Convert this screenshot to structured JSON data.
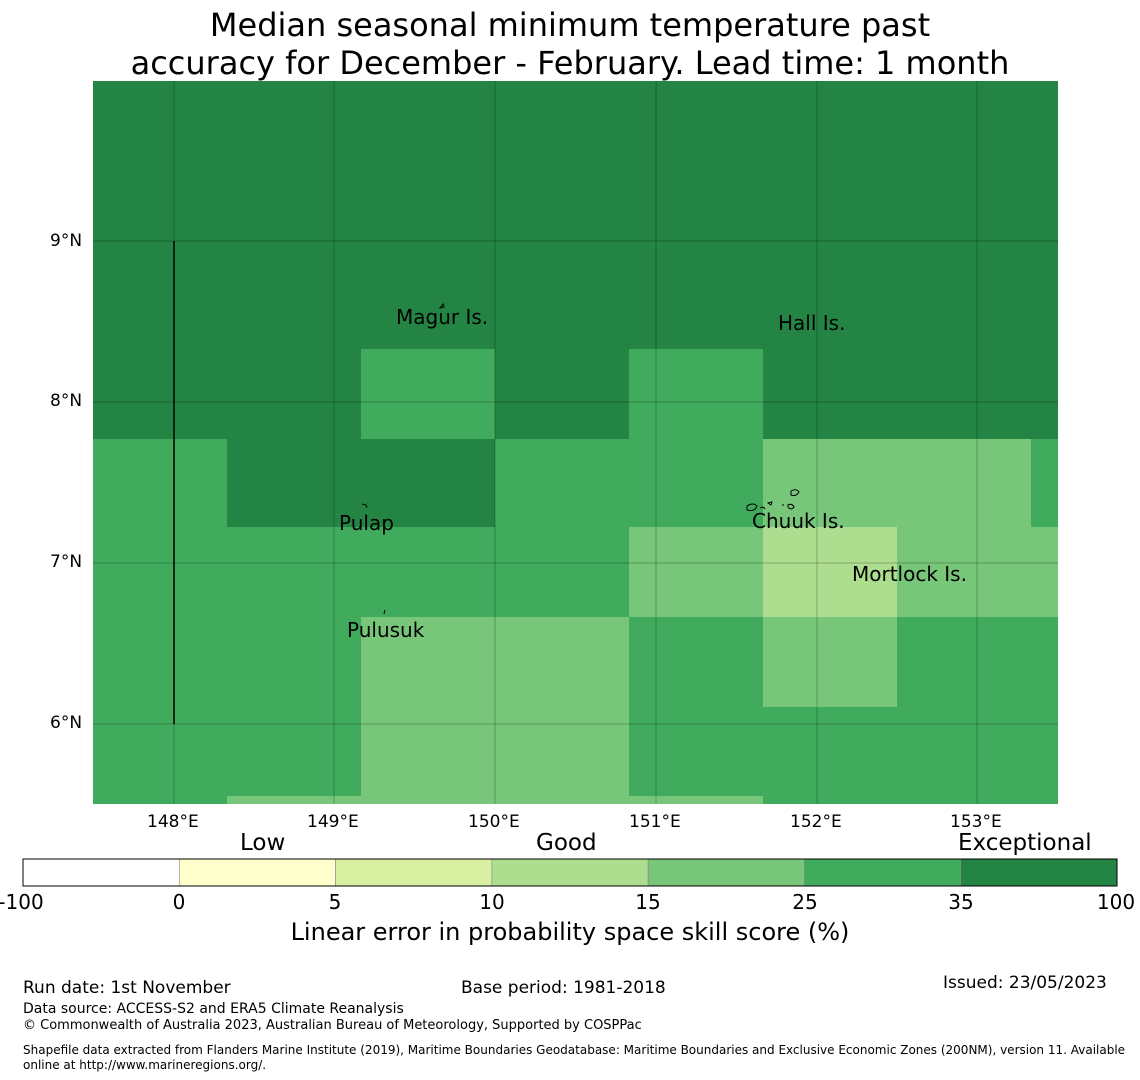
{
  "title": {
    "line1": "Median seasonal minimum temperature past",
    "line2": "accuracy for December - February. Lead time: 1 month"
  },
  "map": {
    "lat_labels": [
      "9°N",
      "8°N",
      "7°N",
      "6°N"
    ],
    "lon_labels": [
      "148°E",
      "149°E",
      "150°E",
      "151°E",
      "152°E",
      "153°E"
    ],
    "places": [
      {
        "name": "Magur Is."
      },
      {
        "name": "Hall Is."
      },
      {
        "name": "Pulap"
      },
      {
        "name": "Chuuk Is."
      },
      {
        "name": "Mortlock Is."
      },
      {
        "name": "Pulusuk"
      }
    ]
  },
  "legend": {
    "categories": [
      "Low",
      "Good",
      "Exceptional"
    ],
    "ticks": [
      "-100",
      "0",
      "5",
      "10",
      "15",
      "25",
      "35",
      "100"
    ],
    "colors": [
      "#ffffff",
      "#ffffcc",
      "#d9f0a3",
      "#addd8e",
      "#78c679",
      "#41ab5d",
      "#238443"
    ],
    "title": "Linear error in probability space skill score (%)"
  },
  "footer": {
    "run_date": "Run date: 1st November",
    "base_period": "Base period: 1981-2018",
    "issued": "Issued: 23/05/2023",
    "data_source": "Data source: ACCESS-S2 and ERA5 Climate Reanalysis",
    "copyright": "© Commonwealth of Australia 2023, Australian Bureau of Meteorology, Supported by COSPPac",
    "shapefile": "Shapefile data extracted from Flanders Marine Institute (2019), Maritime Boundaries Geodatabase: Maritime Boundaries and Exclusive Economic Zones (200NM), version 11. Available online at http://www.marineregions.org/."
  }
}
